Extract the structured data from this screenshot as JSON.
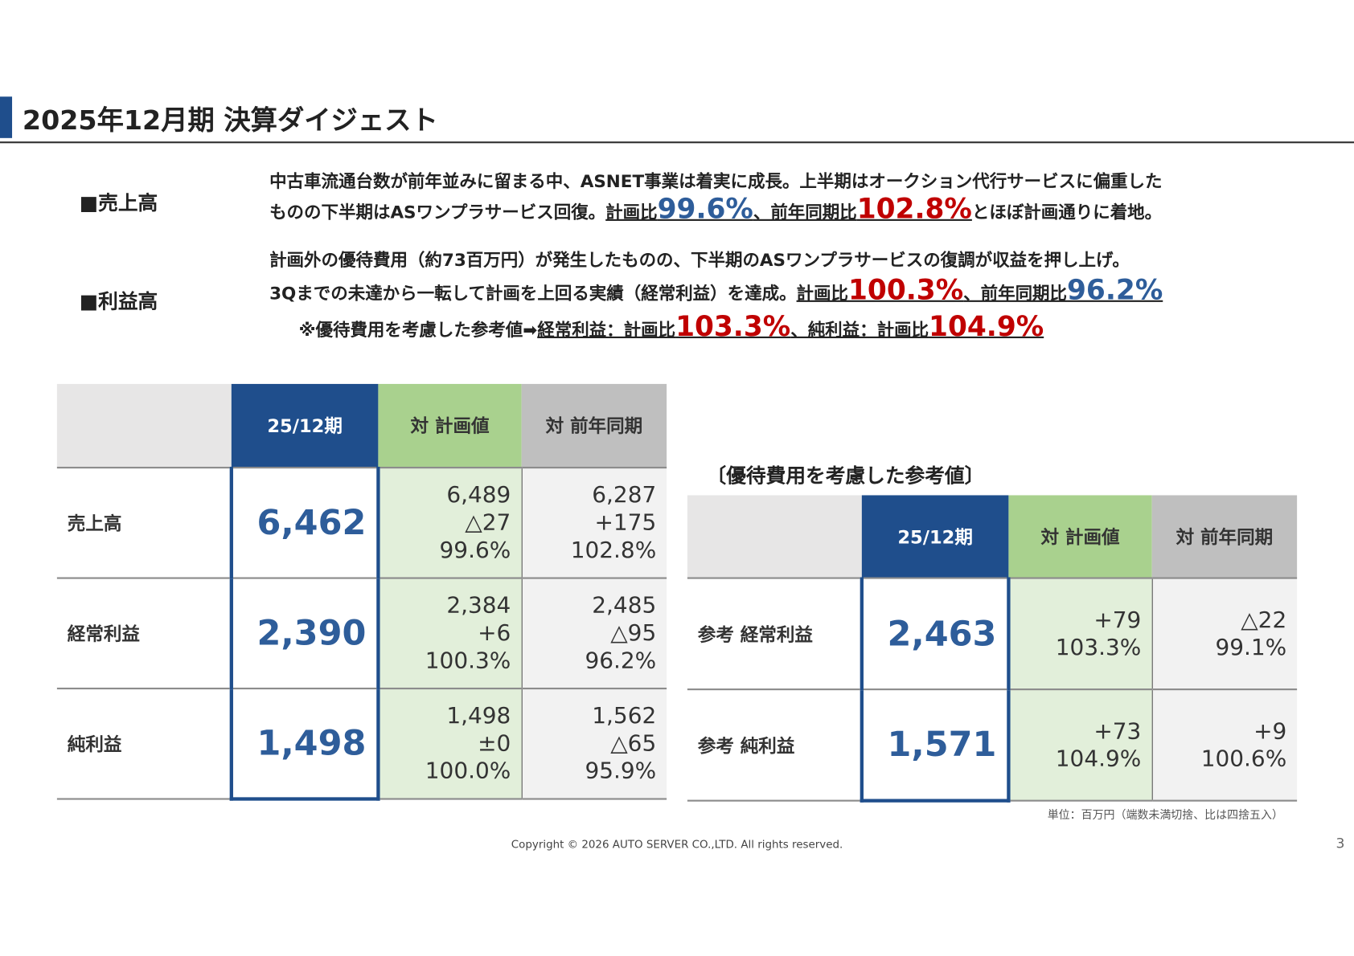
{
  "title": "2025年12月期 決算ダイジェスト",
  "colors": {
    "brand_blue": "#1f4e8c",
    "plan_green": "#a9d18e",
    "prev_gray": "#bfbfbf",
    "highlight_red": "#c00000",
    "highlight_blue": "#2e5d9a"
  },
  "sales": {
    "label": "■売上高",
    "line1": "中古車流通台数が前年並みに留まる中、ASNET事業は着実に成長。上半期はオークション代行サービスに偏重した",
    "line2_pre": "ものの下半期はASワンプラサービス回復。",
    "plan_label": "計画比",
    "plan_pct": "99.6%",
    "yoy_label": "、前年同期比",
    "yoy_pct": "102.8%",
    "line2_post": "とほぼ計画通りに着地。"
  },
  "profit": {
    "label": "■利益高",
    "line1": "計画外の優待費用（約73百万円）が発生したものの、下半期のASワンプラサービスの復調が収益を押し上げ。",
    "line2_pre": "3Qまでの未達から一転して計画を上回る実績（経常利益）を達成。",
    "plan_label": "計画比",
    "plan_pct": "100.3%",
    "yoy_label": "、前年同期比",
    "yoy_pct": "96.2%",
    "line3_pre": "※優待費用を考慮した参考値➡",
    "ord_label": "経常利益：計画比",
    "ord_pct": "103.3%",
    "net_label": "、純利益：計画比",
    "net_pct": "104.9%"
  },
  "main_table": {
    "headers": [
      "",
      "25/12期",
      "対 計画値",
      "対 前年同期"
    ],
    "rows": [
      {
        "label": "売上高",
        "value": "6,462",
        "plan": [
          "6,489",
          "△27",
          "99.6%"
        ],
        "prev": [
          "6,287",
          "+175",
          "102.8%"
        ]
      },
      {
        "label": "経常利益",
        "value": "2,390",
        "plan": [
          "2,384",
          "+6",
          "100.3%"
        ],
        "prev": [
          "2,485",
          "△95",
          "96.2%"
        ]
      },
      {
        "label": "純利益",
        "value": "1,498",
        "plan": [
          "1,498",
          "±0",
          "100.0%"
        ],
        "prev": [
          "1,562",
          "△65",
          "95.9%"
        ]
      }
    ]
  },
  "ref_table": {
    "caption": "〔優待費用を考慮した参考値〕",
    "headers": [
      "",
      "25/12期",
      "対 計画値",
      "対 前年同期"
    ],
    "rows": [
      {
        "label": "参考 経常利益",
        "value": "2,463",
        "plan": [
          "+79",
          "103.3%"
        ],
        "prev": [
          "△22",
          "99.1%"
        ]
      },
      {
        "label": "参考 純利益",
        "value": "1,571",
        "plan": [
          "+73",
          "104.9%"
        ],
        "prev": [
          "+9",
          "100.6%"
        ]
      }
    ]
  },
  "unit_note": "単位：百万円（端数未満切捨、比は四捨五入）",
  "copyright": "Copyright © 2026 AUTO SERVER CO.,LTD.  All rights reserved.",
  "page_number": "3"
}
